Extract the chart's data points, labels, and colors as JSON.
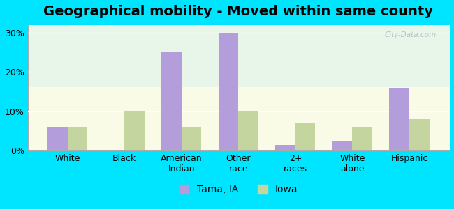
{
  "title": "Geographical mobility - Moved within same county",
  "categories": [
    "White",
    "Black",
    "American\nIndian",
    "Other\nrace",
    "2+\nraces",
    "White\nalone",
    "Hispanic"
  ],
  "tama_values": [
    6,
    0,
    25,
    30,
    1.5,
    2.5,
    16
  ],
  "iowa_values": [
    6,
    10,
    6,
    10,
    7,
    6,
    8
  ],
  "tama_color": "#b39ddb",
  "iowa_color": "#c5d5a0",
  "background_color": "#00e5ff",
  "ylim": [
    0,
    32
  ],
  "yticks": [
    0,
    10,
    20,
    30
  ],
  "title_fontsize": 14,
  "tick_fontsize": 9,
  "legend_labels": [
    "Tama, IA",
    "Iowa"
  ],
  "watermark": "City-Data.com",
  "bar_width": 0.35
}
